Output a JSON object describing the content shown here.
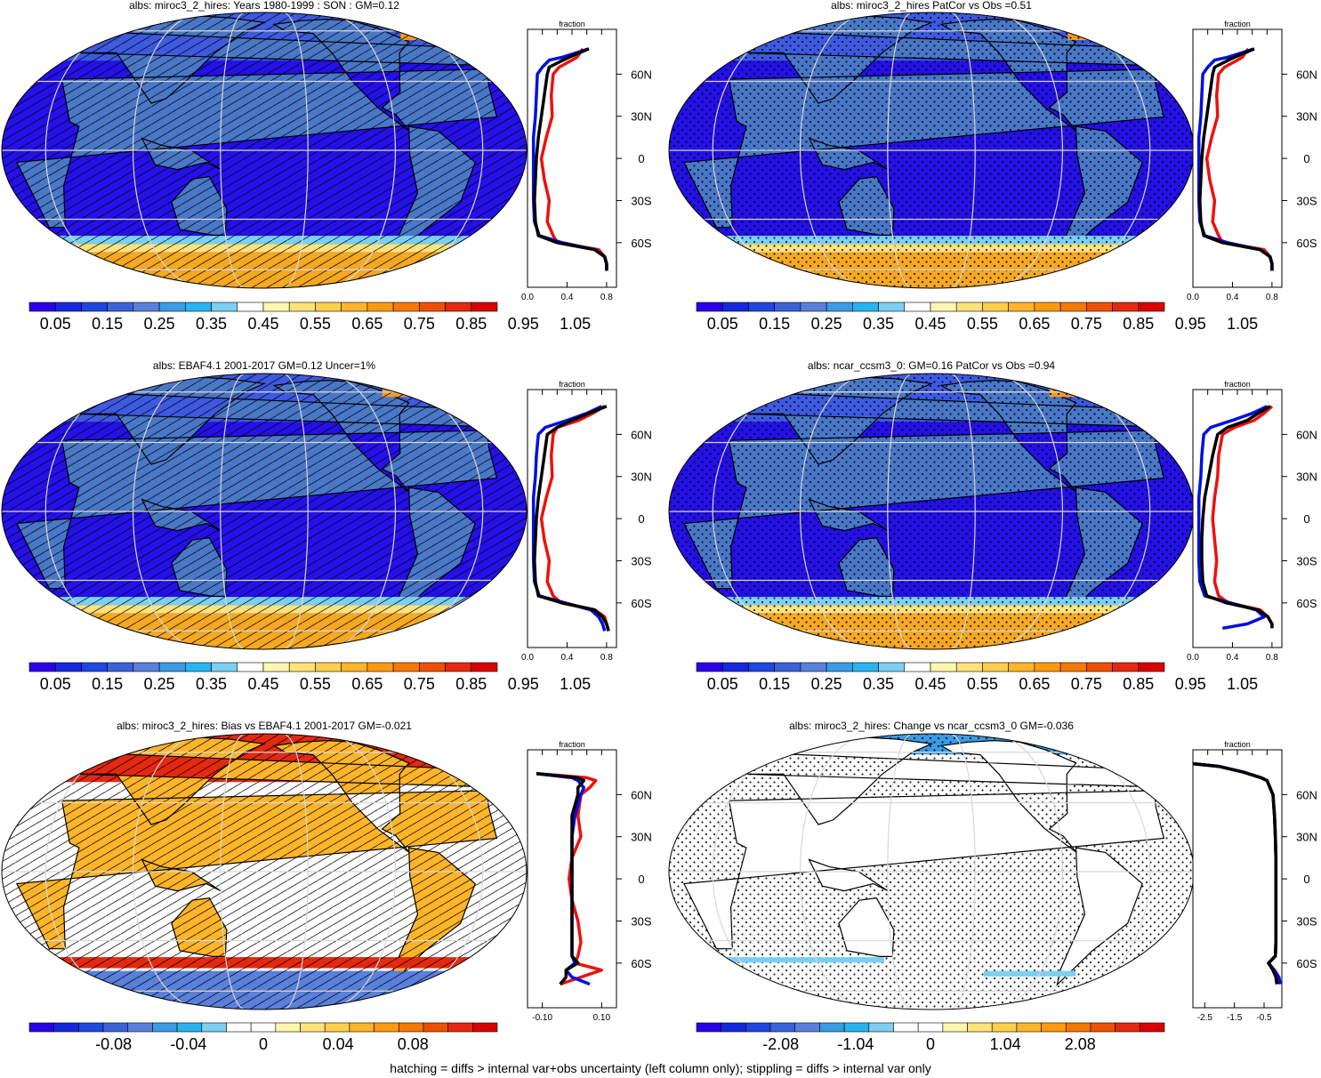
{
  "footer": "hatching = diffs > internal var+obs uncertainty (left column only); stippling = diffs > internal var only",
  "colors": {
    "ocean": "#2410E8",
    "land": "#4A78C8",
    "grid": "#D8D8D8",
    "obs_line": "#0010E0",
    "model_line": "#000000",
    "other_line": "#EE1010"
  },
  "abs_palette": [
    "#2A00E8",
    "#1528E0",
    "#1E46E0",
    "#3A62D8",
    "#5A80DC",
    "#3A9BE6",
    "#28B4F0",
    "#7CCFF2",
    "#FFFFFF",
    "#FFF7B0",
    "#FFE37A",
    "#FFCF4A",
    "#FFB528",
    "#FF9A10",
    "#F57800",
    "#EE5000",
    "#E52810",
    "#D80000"
  ],
  "diff_palette": [
    "#2A00E8",
    "#1528E0",
    "#1E46E0",
    "#3A62D8",
    "#5A80DC",
    "#3A9BE6",
    "#28B4F0",
    "#7CCFF2",
    "#FFFFFF",
    "#FFFFFF",
    "#FFF7B0",
    "#FFE37A",
    "#FFCF4A",
    "#FFB528",
    "#FF9A10",
    "#F57800",
    "#EE5000",
    "#E52810",
    "#D80000"
  ],
  "latitude_ticks": [
    "60N",
    "30N",
    "0",
    "30S",
    "60S"
  ],
  "panels": [
    {
      "title": "albs: miroc3_2_hires: Years 1980-1999 : SON : GM=0.12",
      "colorbar_labels": [
        "0.05",
        "0.15",
        "0.25",
        "0.35",
        "0.45",
        "0.55",
        "0.65",
        "0.75",
        "0.85",
        "0.95",
        "1.05"
      ],
      "palette": "abs",
      "map_style": "abs",
      "hatch": true,
      "profile_title": "fraction",
      "profile_xticks": [
        "0.0",
        "0.4",
        "0.8"
      ],
      "profile_xlim": [
        0,
        0.9
      ]
    },
    {
      "title": "albs: miroc3_2_hires PatCor vs Obs =0.51",
      "colorbar_labels": [
        "0.05",
        "0.15",
        "0.25",
        "0.35",
        "0.45",
        "0.55",
        "0.65",
        "0.75",
        "0.85",
        "0.95",
        "1.05"
      ],
      "palette": "abs",
      "map_style": "abs",
      "hatch": false,
      "profile_title": "fraction",
      "profile_xticks": [
        "0.0",
        "0.4",
        "0.8"
      ],
      "profile_xlim": [
        0,
        0.9
      ]
    },
    {
      "title": "albs: EBAF4.1 2001-2017 GM=0.12 Uncer=1%",
      "colorbar_labels": [
        "0.05",
        "0.15",
        "0.25",
        "0.35",
        "0.45",
        "0.55",
        "0.65",
        "0.75",
        "0.85",
        "0.95",
        "1.05"
      ],
      "palette": "abs",
      "map_style": "abs",
      "hatch": true,
      "profile_title": "fraction",
      "profile_xticks": [
        "0.0",
        "0.4",
        "0.8"
      ],
      "profile_xlim": [
        0,
        0.9
      ]
    },
    {
      "title": "albs: ncar_ccsm3_0: GM=0.16 PatCor vs Obs =0.94",
      "colorbar_labels": [
        "0.05",
        "0.15",
        "0.25",
        "0.35",
        "0.45",
        "0.55",
        "0.65",
        "0.75",
        "0.85",
        "0.95",
        "1.05"
      ],
      "palette": "abs",
      "map_style": "abs",
      "hatch": false,
      "profile_title": "fraction",
      "profile_xticks": [
        "0.0",
        "0.4",
        "0.8"
      ],
      "profile_xlim": [
        0,
        0.9
      ]
    },
    {
      "title": "albs: miroc3_2_hires: Bias vs EBAF4.1 2001-2017  GM=-0.021",
      "colorbar_labels": [
        "-0.08",
        "-0.04",
        "0",
        "0.04",
        "0.08"
      ],
      "palette": "diff",
      "map_style": "bias",
      "hatch": true,
      "profile_title": "fraction",
      "profile_xticks": [
        "-0.10",
        "0.10"
      ],
      "profile_xlim": [
        -0.15,
        0.15
      ]
    },
    {
      "title": "albs: miroc3_2_hires: Change vs ncar_ccsm3_0 GM=-0.036",
      "colorbar_labels": [
        "-2.08",
        "-1.04",
        "0",
        "1.04",
        "2.08"
      ],
      "palette": "diff",
      "map_style": "change",
      "hatch": false,
      "profile_title": "fraction",
      "profile_xticks": [
        "-2.5",
        "-1.5",
        "-0.5"
      ],
      "profile_xlim": [
        -2.9,
        0.1
      ]
    }
  ],
  "chart_data": [
    {
      "type": "line",
      "title": "albs: miroc3_2_hires: Years 1980-1999 : SON : GM=0.12",
      "xlabel": "fraction",
      "y_ticks": [
        "60N",
        "30N",
        "0",
        "30S",
        "60S"
      ],
      "xlim": [
        0,
        0.9
      ],
      "series": [
        {
          "y": [
            78,
            72,
            70,
            65,
            60,
            45,
            30,
            15,
            0,
            -15,
            -30,
            -45,
            -55,
            -60,
            -65,
            -70,
            -75,
            -80
          ],
          "values": [
            0.62,
            0.35,
            0.22,
            0.15,
            0.1,
            0.09,
            0.08,
            0.06,
            0.06,
            0.06,
            0.06,
            0.07,
            0.12,
            0.35,
            0.68,
            0.78,
            0.8,
            0.8
          ]
        },
        {
          "y": [
            78,
            72,
            70,
            65,
            60,
            45,
            30,
            15,
            0,
            -15,
            -30,
            -45,
            -55,
            -60,
            -65,
            -70,
            -75,
            -80
          ],
          "values": [
            0.62,
            0.42,
            0.36,
            0.22,
            0.2,
            0.17,
            0.14,
            0.11,
            0.09,
            0.08,
            0.07,
            0.08,
            0.11,
            0.3,
            0.68,
            0.78,
            0.8,
            0.8
          ]
        },
        {
          "y": [
            78,
            72,
            70,
            65,
            60,
            45,
            30,
            15,
            0,
            -15,
            -30,
            -45,
            -55,
            -60,
            -65,
            -70,
            -75,
            -80
          ],
          "values": [
            0.56,
            0.5,
            0.45,
            0.32,
            0.26,
            0.24,
            0.25,
            0.19,
            0.14,
            0.17,
            0.22,
            0.2,
            0.26,
            0.3,
            0.72,
            0.78,
            0.8,
            0.8
          ]
        }
      ]
    },
    {
      "type": "line",
      "title": "albs: miroc3_2_hires PatCor vs Obs =0.51",
      "xlabel": "fraction",
      "y_ticks": [
        "60N",
        "30N",
        "0",
        "30S",
        "60S"
      ],
      "xlim": [
        0,
        0.9
      ],
      "series": [
        {
          "y": [
            78,
            72,
            70,
            65,
            60,
            45,
            30,
            15,
            0,
            -15,
            -30,
            -45,
            -55,
            -60,
            -65,
            -70,
            -75,
            -80
          ],
          "values": [
            0.62,
            0.35,
            0.22,
            0.15,
            0.1,
            0.09,
            0.08,
            0.06,
            0.06,
            0.06,
            0.06,
            0.07,
            0.12,
            0.35,
            0.68,
            0.78,
            0.8,
            0.8
          ]
        },
        {
          "y": [
            78,
            72,
            70,
            65,
            60,
            45,
            30,
            15,
            0,
            -15,
            -30,
            -45,
            -55,
            -60,
            -65,
            -70,
            -75,
            -80
          ],
          "values": [
            0.62,
            0.42,
            0.36,
            0.22,
            0.2,
            0.17,
            0.14,
            0.11,
            0.09,
            0.08,
            0.07,
            0.08,
            0.11,
            0.3,
            0.68,
            0.78,
            0.8,
            0.8
          ]
        },
        {
          "y": [
            78,
            72,
            70,
            65,
            60,
            45,
            30,
            15,
            0,
            -15,
            -30,
            -45,
            -55,
            -60,
            -65,
            -70,
            -75,
            -80
          ],
          "values": [
            0.56,
            0.5,
            0.45,
            0.32,
            0.26,
            0.24,
            0.25,
            0.19,
            0.14,
            0.17,
            0.22,
            0.2,
            0.26,
            0.3,
            0.72,
            0.78,
            0.8,
            0.8
          ]
        }
      ]
    },
    {
      "type": "line",
      "title": "albs: EBAF4.1 2001-2017 GM=0.12 Uncer=1%",
      "xlabel": "fraction",
      "y_ticks": [
        "60N",
        "30N",
        "0",
        "30S",
        "60S"
      ],
      "xlim": [
        0,
        0.9
      ],
      "series": [
        {
          "y": [
            80,
            75,
            70,
            65,
            60,
            45,
            30,
            15,
            0,
            -15,
            -30,
            -45,
            -55,
            -60,
            -65,
            -70,
            -75,
            -80
          ],
          "values": [
            0.75,
            0.6,
            0.4,
            0.18,
            0.11,
            0.09,
            0.08,
            0.06,
            0.06,
            0.06,
            0.06,
            0.07,
            0.12,
            0.38,
            0.64,
            0.72,
            0.76,
            0.78
          ]
        },
        {
          "y": [
            80,
            75,
            70,
            65,
            60,
            45,
            30,
            15,
            0,
            -15,
            -30,
            -45,
            -55,
            -60,
            -65,
            -70,
            -75,
            -80
          ],
          "values": [
            0.8,
            0.62,
            0.45,
            0.3,
            0.2,
            0.17,
            0.14,
            0.11,
            0.09,
            0.08,
            0.07,
            0.08,
            0.11,
            0.35,
            0.68,
            0.76,
            0.8,
            0.82
          ]
        },
        {
          "y": [
            80,
            75,
            70,
            65,
            60,
            45,
            30,
            15,
            0,
            -15,
            -30,
            -45,
            -55,
            -60,
            -65,
            -70,
            -75,
            -80
          ],
          "values": [
            0.78,
            0.66,
            0.52,
            0.3,
            0.26,
            0.24,
            0.25,
            0.19,
            0.14,
            0.17,
            0.22,
            0.2,
            0.26,
            0.34,
            0.68,
            0.78,
            0.8,
            0.82
          ]
        }
      ]
    },
    {
      "type": "line",
      "title": "albs: ncar_ccsm3_0: GM=0.16 PatCor vs Obs =0.94",
      "xlabel": "fraction",
      "y_ticks": [
        "60N",
        "30N",
        "0",
        "30S",
        "60S"
      ],
      "xlim": [
        0,
        0.9
      ],
      "series": [
        {
          "y": [
            80,
            75,
            70,
            65,
            60,
            45,
            30,
            15,
            0,
            -15,
            -30,
            -45,
            -55,
            -60,
            -65,
            -70,
            -75,
            -78
          ],
          "values": [
            0.75,
            0.6,
            0.4,
            0.18,
            0.11,
            0.09,
            0.08,
            0.06,
            0.06,
            0.06,
            0.06,
            0.07,
            0.12,
            0.38,
            0.64,
            0.72,
            0.55,
            0.3
          ]
        },
        {
          "y": [
            80,
            75,
            70,
            65,
            60,
            45,
            30,
            15,
            0,
            -15,
            -30,
            -45,
            -55,
            -60,
            -65,
            -70,
            -75,
            -78
          ],
          "values": [
            0.78,
            0.66,
            0.55,
            0.35,
            0.25,
            0.2,
            0.16,
            0.12,
            0.1,
            0.09,
            0.09,
            0.1,
            0.14,
            0.34,
            0.66,
            0.76,
            0.8,
            0.8
          ]
        },
        {
          "y": [
            80,
            75,
            70,
            65,
            60,
            45,
            30,
            15,
            0,
            -15,
            -30,
            -45,
            -55,
            -60,
            -65,
            -70,
            -75,
            -78
          ],
          "values": [
            0.8,
            0.72,
            0.62,
            0.42,
            0.3,
            0.26,
            0.25,
            0.22,
            0.2,
            0.22,
            0.24,
            0.22,
            0.26,
            0.36,
            0.68,
            0.76,
            0.8,
            0.8
          ]
        }
      ]
    },
    {
      "type": "line",
      "title": "albs: miroc3_2_hires: Bias vs EBAF4.1 2001-2017  GM=-0.021",
      "xlabel": "fraction",
      "y_ticks": [
        "60N",
        "30N",
        "0",
        "30S",
        "60S"
      ],
      "xlim": [
        -0.15,
        0.15
      ],
      "series": [
        {
          "y": [
            75,
            72,
            70,
            65,
            60,
            45,
            30,
            15,
            0,
            -15,
            -30,
            -45,
            -55,
            -60,
            -65,
            -70,
            -75
          ],
          "values": [
            -0.12,
            0.0,
            0.02,
            0.04,
            0.03,
            0.01,
            0.0,
            0.0,
            0.0,
            0.0,
            0.0,
            0.0,
            0.0,
            0.01,
            -0.02,
            0.0,
            0.06
          ]
        },
        {
          "y": [
            75,
            72,
            70,
            65,
            60,
            45,
            30,
            15,
            0,
            -15,
            -30,
            -45,
            -55,
            -60,
            -65,
            -70,
            -75
          ],
          "values": [
            -0.12,
            0.02,
            0.04,
            0.02,
            0.02,
            0.0,
            0.0,
            0.0,
            0.0,
            0.0,
            0.0,
            0.0,
            0.0,
            0.02,
            -0.02,
            -0.02,
            -0.04
          ]
        },
        {
          "y": [
            75,
            72,
            70,
            65,
            60,
            45,
            30,
            15,
            0,
            -15,
            -30,
            -45,
            -55,
            -60,
            -65,
            -70,
            -75
          ],
          "values": [
            -0.12,
            0.05,
            0.08,
            0.06,
            0.03,
            0.02,
            0.03,
            0.0,
            -0.01,
            0.0,
            0.02,
            0.03,
            0.02,
            0.01,
            0.1,
            0.03,
            -0.04
          ]
        }
      ]
    },
    {
      "type": "line",
      "title": "albs: miroc3_2_hires: Change vs ncar_ccsm3_0 GM=-0.036",
      "xlabel": "fraction",
      "y_ticks": [
        "60N",
        "30N",
        "0",
        "30S",
        "60S"
      ],
      "xlim": [
        -2.9,
        0.1
      ],
      "series": [
        {
          "y": [
            82,
            80,
            76,
            72,
            70,
            60,
            45,
            30,
            15,
            0,
            -15,
            -30,
            -45,
            -55,
            -60,
            -65,
            -70,
            -75
          ],
          "values": [
            -2.9,
            -2.0,
            -1.2,
            -0.6,
            -0.4,
            -0.2,
            -0.15,
            -0.12,
            -0.1,
            -0.1,
            -0.1,
            -0.1,
            -0.1,
            -0.12,
            -0.35,
            -0.15,
            0.0,
            0.05
          ]
        },
        {
          "y": [
            82,
            80,
            76,
            72,
            70,
            60,
            45,
            30,
            15,
            0,
            -15,
            -30,
            -45,
            -55,
            -60,
            -65,
            -70,
            -75
          ],
          "values": [
            -2.9,
            -2.0,
            -1.2,
            -0.6,
            -0.4,
            -0.2,
            -0.15,
            -0.12,
            -0.1,
            -0.1,
            -0.1,
            -0.1,
            -0.1,
            -0.12,
            -0.35,
            -0.2,
            -0.1,
            -0.05
          ]
        },
        {
          "y": [
            82,
            80,
            76,
            72,
            70,
            60,
            45,
            30,
            15,
            0,
            -15,
            -30,
            -45,
            -55,
            -60,
            -65,
            -70,
            -75
          ],
          "values": [
            -2.9,
            -2.0,
            -1.2,
            -0.6,
            -0.4,
            -0.2,
            -0.15,
            -0.12,
            -0.1,
            -0.1,
            -0.1,
            -0.1,
            -0.1,
            -0.12,
            -0.35,
            -0.2,
            -0.1,
            -0.08
          ]
        }
      ]
    }
  ]
}
